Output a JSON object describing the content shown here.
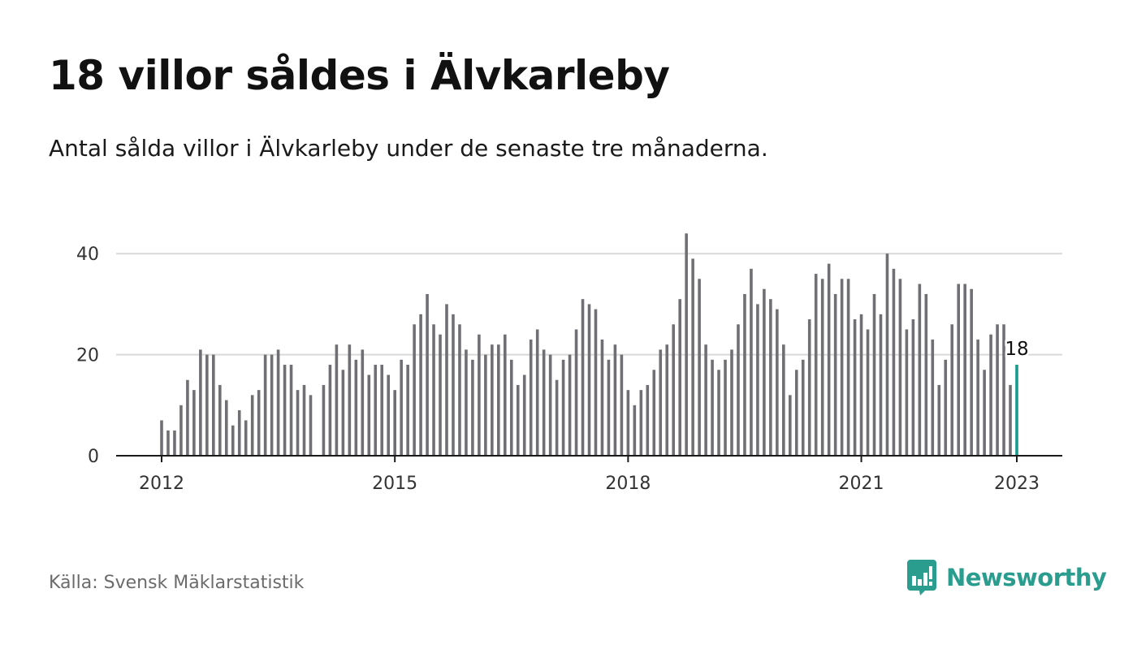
{
  "title": "18 villor såldes i Älvkarleby",
  "subtitle": "Antal sålda villor i Älvkarleby under de senaste tre månaderna.",
  "source": "Källa: Svensk Mäklarstatistik",
  "brand": {
    "name": "Newsworthy",
    "icon": "newsworthy-logo-icon",
    "color": "#2a9d8f"
  },
  "colors": {
    "bar": "#707074",
    "highlight": "#1a9a8c",
    "grid": "#d9d9d9",
    "axis": "#1a1a1a"
  },
  "chart_data": {
    "type": "bar",
    "title": "",
    "xlabel": "",
    "ylabel": "",
    "ylim": [
      0,
      48
    ],
    "yticks": [
      0,
      20,
      40
    ],
    "ytick_labels": [
      "0",
      "20",
      "40"
    ],
    "x_start": "2012-01",
    "x_end": "2023-01",
    "xticks": [
      "2012",
      "2015",
      "2018",
      "2021",
      "2023"
    ],
    "grid": true,
    "legend": "none",
    "highlight_label": "18",
    "values": [
      7,
      5,
      5,
      10,
      15,
      13,
      21,
      20,
      20,
      14,
      11,
      6,
      9,
      7,
      12,
      13,
      20,
      20,
      21,
      18,
      18,
      13,
      14,
      12,
      null,
      14,
      18,
      22,
      17,
      22,
      19,
      21,
      16,
      18,
      18,
      16,
      13,
      19,
      18,
      26,
      28,
      32,
      26,
      24,
      30,
      28,
      26,
      21,
      19,
      24,
      20,
      22,
      22,
      24,
      19,
      14,
      16,
      23,
      25,
      21,
      20,
      15,
      19,
      20,
      25,
      31,
      30,
      29,
      23,
      19,
      22,
      20,
      13,
      10,
      13,
      14,
      17,
      21,
      22,
      26,
      31,
      44,
      39,
      35,
      22,
      19,
      17,
      19,
      21,
      26,
      32,
      37,
      30,
      33,
      31,
      29,
      22,
      12,
      17,
      19,
      27,
      36,
      35,
      38,
      32,
      35,
      35,
      27,
      28,
      25,
      32,
      28,
      40,
      37,
      35,
      25,
      27,
      34,
      32,
      23,
      14,
      19,
      26,
      34,
      34,
      33,
      23,
      17,
      24,
      26,
      26,
      14,
      18
    ]
  }
}
